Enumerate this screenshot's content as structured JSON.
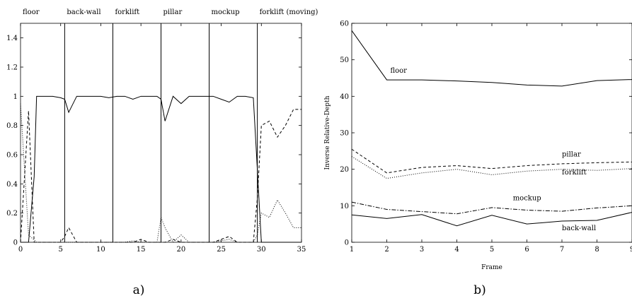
{
  "chart_data": [
    {
      "type": "line",
      "caption": "a)",
      "title": "",
      "xlabel": "",
      "ylabel": "",
      "xlim": [
        0,
        35
      ],
      "ylim": [
        0,
        1.5
      ],
      "x_ticks": [
        0,
        5,
        10,
        15,
        20,
        25,
        30,
        35
      ],
      "y_ticks": [
        0,
        0.2,
        0.4,
        0.6,
        0.8,
        1,
        1.2,
        1.4
      ],
      "grid": false,
      "segment_labels": [
        "floor",
        "back-wall",
        "forklift",
        "pillar",
        "mockup",
        "forklift (moving)"
      ],
      "segment_label_x": [
        0,
        5.5,
        11.5,
        17.5,
        23.5,
        29.5
      ],
      "boundaries": [
        5.5,
        11.5,
        17.5,
        23.5,
        29.5
      ],
      "series": [
        {
          "style": "solid",
          "x": [
            0,
            1,
            1.7,
            2,
            3,
            4,
            5,
            5.5,
            6,
            7,
            8,
            9,
            10,
            11,
            12,
            13,
            14,
            15,
            16,
            17,
            17.5,
            18,
            19,
            20,
            21,
            22,
            23,
            24,
            25,
            26,
            27,
            28,
            29,
            29.5,
            30,
            31,
            32,
            33,
            34,
            35
          ],
          "y": [
            0,
            0,
            0.45,
            1.0,
            1.0,
            1.0,
            0.99,
            0.98,
            0.89,
            1.0,
            1.0,
            1.0,
            1.0,
            0.99,
            1.0,
            1.0,
            0.98,
            1.0,
            1.0,
            1.0,
            0.98,
            0.83,
            1.0,
            0.95,
            1.0,
            1.0,
            1.0,
            1.0,
            0.98,
            0.96,
            1.0,
            1.0,
            0.99,
            0.5,
            0,
            0,
            0,
            0,
            0,
            0
          ]
        },
        {
          "style": "dashed",
          "x": [
            0,
            1,
            1.7,
            2,
            3,
            4,
            5,
            5.5,
            6,
            7,
            8,
            9,
            10,
            11,
            12,
            13,
            14,
            15,
            16,
            17,
            18,
            19,
            20,
            21,
            22,
            23,
            24,
            25,
            26,
            27,
            28,
            29,
            29.5,
            30,
            31,
            32,
            33,
            34,
            35
          ],
          "y": [
            0,
            0.9,
            0,
            0,
            0,
            0,
            0,
            0.04,
            0.1,
            0,
            0,
            0,
            0,
            0,
            0,
            0,
            0,
            0.02,
            0,
            0,
            0,
            0.02,
            0,
            0,
            0,
            0,
            0,
            0.02,
            0.04,
            0,
            0,
            0,
            0.3,
            0.8,
            0.83,
            0.72,
            0.8,
            0.91,
            0.91
          ]
        },
        {
          "style": "dotted",
          "x": [
            0,
            1,
            2,
            3,
            4,
            5,
            6,
            7,
            8,
            9,
            10,
            11,
            12,
            13,
            14,
            15,
            16,
            17,
            17.5,
            18,
            19,
            20,
            21,
            22,
            23,
            24,
            25,
            26,
            27,
            28,
            29,
            29.5,
            30,
            31,
            32,
            33,
            34,
            35
          ],
          "y": [
            0.95,
            0.05,
            0,
            0,
            0,
            0,
            0,
            0,
            0,
            0,
            0,
            0,
            0,
            0,
            0.01,
            0,
            0,
            0,
            0.17,
            0.1,
            0,
            0.05,
            0,
            0,
            0,
            0,
            0.01,
            0.02,
            0,
            0,
            0,
            0.05,
            0.2,
            0.17,
            0.29,
            0.2,
            0.1,
            0.1
          ]
        }
      ]
    },
    {
      "type": "line",
      "caption": "b)",
      "title": "",
      "xlabel": "Frame",
      "ylabel": "Inverse Relative-Depth",
      "xlim": [
        1,
        9
      ],
      "ylim": [
        0,
        60
      ],
      "x_ticks": [
        1,
        2,
        3,
        4,
        5,
        6,
        7,
        8,
        9
      ],
      "y_ticks": [
        0,
        10,
        20,
        30,
        40,
        50,
        60
      ],
      "grid": false,
      "series": [
        {
          "name": "floor",
          "style": "solid",
          "label_x": 2.1,
          "label_y": 46.5,
          "x": [
            1,
            2,
            3,
            4,
            5,
            6,
            7,
            8,
            9
          ],
          "y": [
            58,
            44.5,
            44.5,
            44.2,
            43.8,
            43.1,
            42.8,
            44.3,
            44.6
          ]
        },
        {
          "name": "pillar",
          "style": "dashed",
          "label_x": 7.0,
          "label_y": 23.5,
          "x": [
            1,
            2,
            3,
            4,
            5,
            6,
            7,
            8,
            9
          ],
          "y": [
            25.5,
            19,
            20.5,
            21,
            20.2,
            21,
            21.5,
            21.8,
            22
          ]
        },
        {
          "name": "forklift",
          "style": "dotted",
          "label_x": 7.0,
          "label_y": 18.6,
          "x": [
            1,
            2,
            3,
            4,
            5,
            6,
            7,
            8,
            9
          ],
          "y": [
            23.5,
            17.5,
            19,
            20,
            18.5,
            19.5,
            20,
            19.7,
            20.2
          ]
        },
        {
          "name": "mockup",
          "style": "dashdot",
          "label_x": 5.6,
          "label_y": 11.5,
          "x": [
            1,
            2,
            3,
            4,
            5,
            6,
            7,
            8,
            9
          ],
          "y": [
            11,
            9,
            8.4,
            7.8,
            9.5,
            8.8,
            8.5,
            9.4,
            10
          ]
        },
        {
          "name": "back-wall",
          "style": "solid",
          "label_x": 7.0,
          "label_y": 3.3,
          "x": [
            1,
            2,
            3,
            4,
            5,
            6,
            7,
            8,
            9
          ],
          "y": [
            7.5,
            6.5,
            7.6,
            4.5,
            7.4,
            5,
            5.8,
            6,
            8.2
          ]
        }
      ]
    }
  ]
}
